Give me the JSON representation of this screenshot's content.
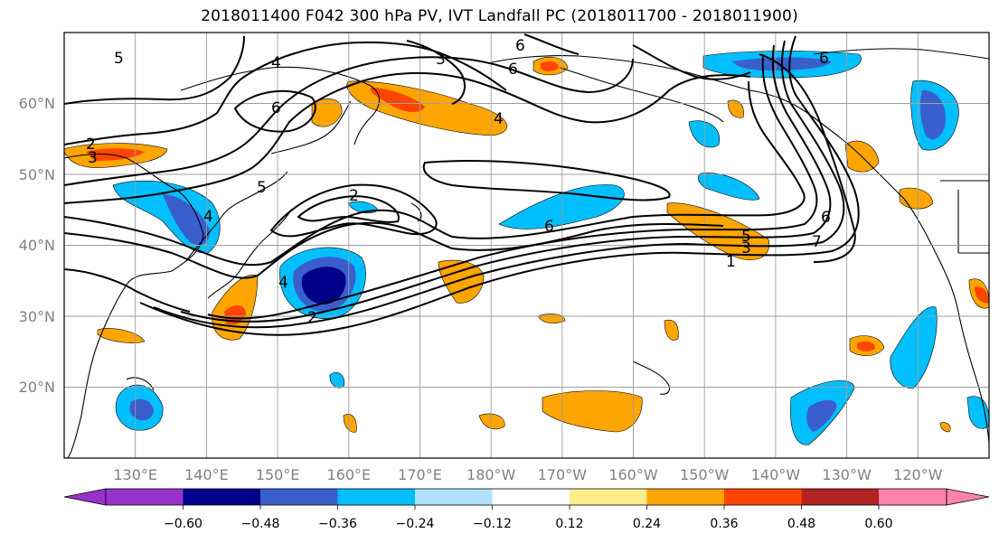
{
  "title": "2018011400 F042 300 hPa PV, IVT Landfall PC (2018011700 - 2018011900)",
  "map": {
    "projection": "PlateCarree",
    "lon_range": [
      120,
      250
    ],
    "lat_range": [
      10,
      70
    ],
    "lon_ticks": [
      {
        "lon": 130,
        "label": "130°E"
      },
      {
        "lon": 140,
        "label": "140°E"
      },
      {
        "lon": 150,
        "label": "150°E"
      },
      {
        "lon": 160,
        "label": "160°E"
      },
      {
        "lon": 170,
        "label": "170°E"
      },
      {
        "lon": 180,
        "label": "180°W"
      },
      {
        "lon": 190,
        "label": "170°W"
      },
      {
        "lon": 200,
        "label": "160°W"
      },
      {
        "lon": 210,
        "label": "150°W"
      },
      {
        "lon": 220,
        "label": "140°W"
      },
      {
        "lon": 230,
        "label": "130°W"
      },
      {
        "lon": 240,
        "label": "120°W"
      }
    ],
    "lat_ticks": [
      {
        "lat": 20,
        "label": "20°N"
      },
      {
        "lat": 30,
        "label": "30°N"
      },
      {
        "lat": 40,
        "label": "40°N"
      },
      {
        "lat": 50,
        "label": "50°N"
      },
      {
        "lat": 60,
        "label": "60°N"
      }
    ],
    "contour_labels": [
      "2",
      "3",
      "4",
      "5",
      "6",
      "1",
      "7"
    ]
  },
  "colorbar": {
    "colors": [
      "#9932cc",
      "#00008b",
      "#3a5fcd",
      "#00bfff",
      "#b0e2ff",
      "#ffffff",
      "#ffec8b",
      "#ffa500",
      "#ff4500",
      "#b22222",
      "#ff82ab"
    ],
    "tick_labels": [
      "−0.60",
      "−0.48",
      "−0.36",
      "−0.24",
      "−0.12",
      "0.12",
      "0.24",
      "0.36",
      "0.48",
      "0.60"
    ]
  }
}
